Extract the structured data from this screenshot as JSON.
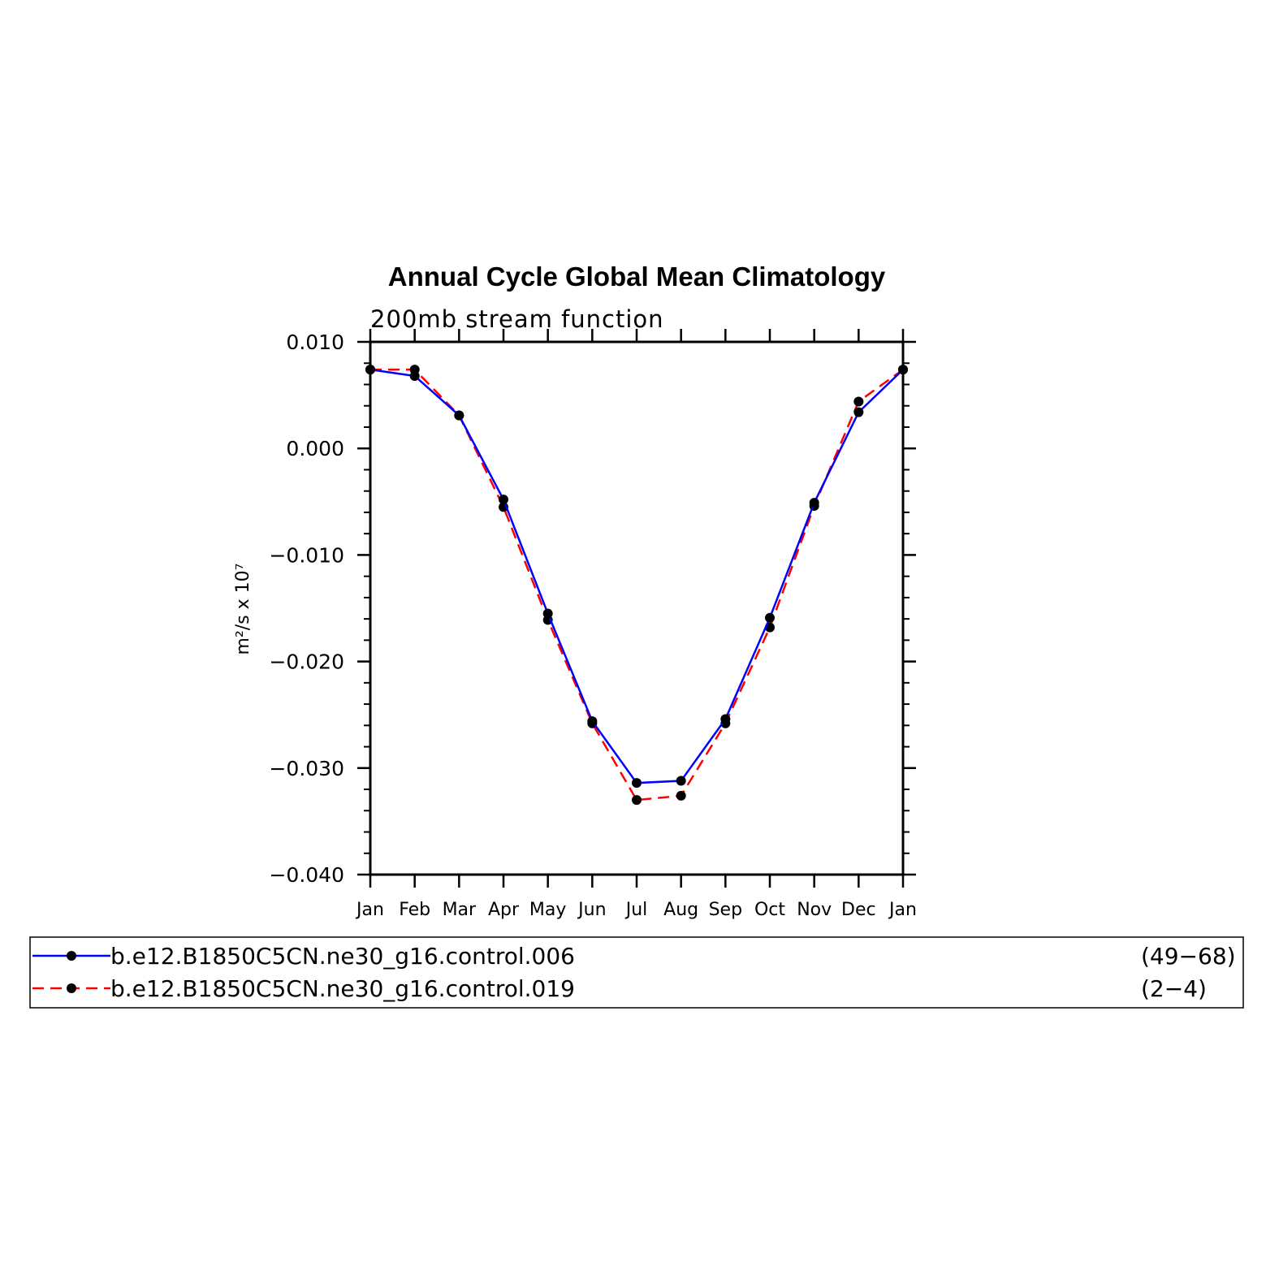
{
  "chart_data": {
    "type": "line",
    "title": "Annual Cycle Global Mean Climatology",
    "subtitle": "200mb stream function",
    "ylabel": "m²/s x 10⁷",
    "xlabel": "",
    "categories": [
      "Jan",
      "Feb",
      "Mar",
      "Apr",
      "May",
      "Jun",
      "Jul",
      "Aug",
      "Sep",
      "Oct",
      "Nov",
      "Dec",
      "Jan"
    ],
    "ylim": [
      -0.04,
      0.01
    ],
    "yticks": [
      "0.010",
      "0.000",
      "−0.010",
      "−0.020",
      "−0.030",
      "−0.040"
    ],
    "ytick_values": [
      0.01,
      0.0,
      -0.01,
      -0.02,
      -0.03,
      -0.04
    ],
    "grid": false,
    "legend_position": "bottom",
    "series": [
      {
        "name": "b.e12.B1850C5CN.ne30_g16.control.006",
        "years": "(49−68)",
        "color": "#0000ff",
        "dash": "solid",
        "values": [
          0.0074,
          0.0068,
          0.0031,
          -0.0048,
          -0.0155,
          -0.0256,
          -0.0314,
          -0.0312,
          -0.0254,
          -0.0159,
          -0.0051,
          0.0034,
          0.0074
        ]
      },
      {
        "name": "b.e12.B1850C5CN.ne30_g16.control.019",
        "years": "(2−4)",
        "color": "#ff0000",
        "dash": "dashed",
        "values": [
          0.0074,
          0.0074,
          0.0031,
          -0.0055,
          -0.0161,
          -0.0258,
          -0.033,
          -0.0326,
          -0.0258,
          -0.0168,
          -0.0054,
          0.0044,
          0.0074
        ]
      }
    ]
  }
}
